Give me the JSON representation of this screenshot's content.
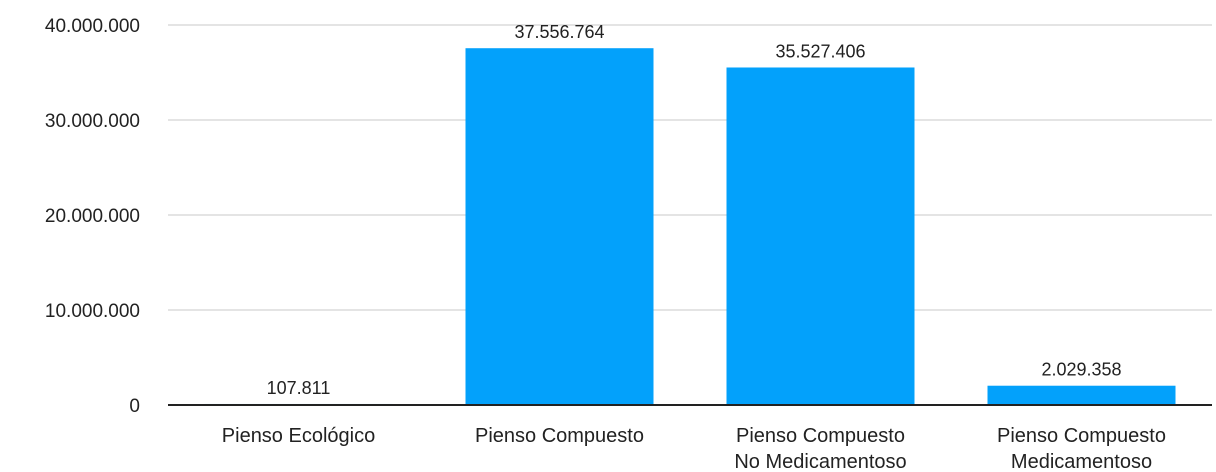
{
  "chart_data": {
    "type": "bar",
    "categories": [
      [
        "Pienso Ecológico"
      ],
      [
        "Pienso Compuesto"
      ],
      [
        "Pienso Compuesto",
        "No Medicamentoso"
      ],
      [
        "Pienso Compuesto",
        "Medicamentoso"
      ]
    ],
    "values": [
      107811,
      37556764,
      35527406,
      2029358
    ],
    "data_labels": [
      "107.811",
      "37.556.764",
      "35.527.406",
      "2.029.358"
    ],
    "y_ticks": [
      0,
      10000000,
      20000000,
      30000000,
      40000000
    ],
    "y_tick_labels": [
      "0",
      "10.000.000",
      "20.000.000",
      "30.000.000",
      "40.000.000"
    ],
    "ylim": [
      0,
      40000000
    ],
    "grid": true,
    "legend": "none",
    "colors": {
      "bar": "#03a1fb",
      "grid": "#c8c8c8",
      "axis": "#222222"
    }
  }
}
